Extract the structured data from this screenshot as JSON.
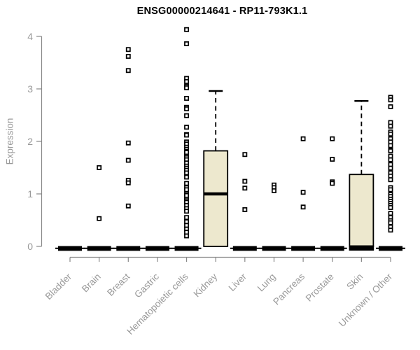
{
  "chart_data": {
    "type": "boxplot",
    "title": "ENSG00000214641 - RP11-793K1.1",
    "ylabel": "Expression",
    "xlabel": "",
    "ylim": [
      0,
      4.2
    ],
    "yticks": [
      0,
      1,
      2,
      3,
      4
    ],
    "grid": false,
    "legend": "none",
    "categories": [
      "Bladder",
      "Brain",
      "Breast",
      "Gastric",
      "Hematopoietic cells",
      "Kidney",
      "Liver",
      "Lung",
      "Pancreas",
      "Prostate",
      "Skin",
      "Unknown / Other"
    ],
    "series": [
      {
        "category": "Bladder",
        "q1": 0,
        "median": 0,
        "q3": 0,
        "whisker_low": 0,
        "whisker_high": 0,
        "outliers": []
      },
      {
        "category": "Brain",
        "q1": 0,
        "median": 0,
        "q3": 0,
        "whisker_low": 0,
        "whisker_high": 0,
        "outliers": [
          1.5,
          0.53
        ]
      },
      {
        "category": "Breast",
        "q1": 0,
        "median": 0,
        "q3": 0,
        "whisker_low": 0,
        "whisker_high": 0,
        "outliers": [
          3.75,
          3.62,
          3.35,
          1.97,
          1.64,
          1.26,
          1.21,
          0.77
        ]
      },
      {
        "category": "Gastric",
        "q1": 0,
        "median": 0,
        "q3": 0,
        "whisker_low": 0,
        "whisker_high": 0,
        "outliers": []
      },
      {
        "category": "Hematopoietic cells",
        "q1": 0,
        "median": 0,
        "q3": 0,
        "whisker_low": 0,
        "whisker_high": 0,
        "outliers": [
          4.13,
          3.86,
          3.2,
          3.14,
          3.05,
          3.02,
          2.82,
          2.65,
          2.62,
          2.49,
          2.27,
          2.13,
          2.12,
          1.99,
          1.95,
          1.89,
          1.85,
          1.81,
          1.79,
          1.72,
          1.69,
          1.65,
          1.59,
          1.53,
          1.49,
          1.45,
          1.4,
          1.32,
          1.2,
          1.12,
          1.08,
          1.0,
          0.97,
          0.9,
          0.87,
          0.84,
          0.78,
          0.72,
          0.67,
          0.55,
          0.47,
          0.4,
          0.33,
          0.27,
          0.2
        ]
      },
      {
        "category": "Kidney",
        "q1": 0,
        "median": 1.0,
        "q3": 1.82,
        "whisker_low": 0,
        "whisker_high": 2.96,
        "outliers": []
      },
      {
        "category": "Liver",
        "q1": 0,
        "median": 0,
        "q3": 0,
        "whisker_low": 0,
        "whisker_high": 0,
        "outliers": [
          1.75,
          1.24,
          1.11,
          0.7
        ]
      },
      {
        "category": "Lung",
        "q1": 0,
        "median": 0,
        "q3": 0,
        "whisker_low": 0,
        "whisker_high": 0,
        "outliers": [
          1.17,
          1.12,
          1.06
        ]
      },
      {
        "category": "Pancreas",
        "q1": 0,
        "median": 0,
        "q3": 0,
        "whisker_low": 0,
        "whisker_high": 0,
        "outliers": [
          2.05,
          1.03,
          0.75
        ]
      },
      {
        "category": "Prostate",
        "q1": 0,
        "median": 0,
        "q3": 0,
        "whisker_low": 0,
        "whisker_high": 0,
        "outliers": [
          2.05,
          1.66,
          1.23,
          1.2
        ]
      },
      {
        "category": "Skin",
        "q1": 0,
        "median": 0,
        "q3": 1.37,
        "whisker_low": 0,
        "whisker_high": 2.77,
        "outliers": []
      },
      {
        "category": "Unknown / Other",
        "q1": 0,
        "median": 0,
        "q3": 0,
        "whisker_low": 0,
        "whisker_high": 0,
        "outliers": [
          2.84,
          2.79,
          2.66,
          2.36,
          2.29,
          2.18,
          2.14,
          2.05,
          1.99,
          1.92,
          1.84,
          1.82,
          1.72,
          1.65,
          1.56,
          1.49,
          1.4,
          1.34,
          1.27,
          1.12,
          1.08,
          0.99,
          0.95,
          0.9,
          0.86,
          0.82,
          0.78,
          0.74,
          0.63,
          0.55,
          0.49,
          0.45,
          0.37,
          0.31
        ]
      }
    ],
    "style": {
      "box_fill": "#EDE8CE",
      "box_stroke": "#000000",
      "axis_color": "#888888",
      "label_color": "#999999",
      "title_color": "#000000",
      "background": "#FFFFFF"
    }
  }
}
